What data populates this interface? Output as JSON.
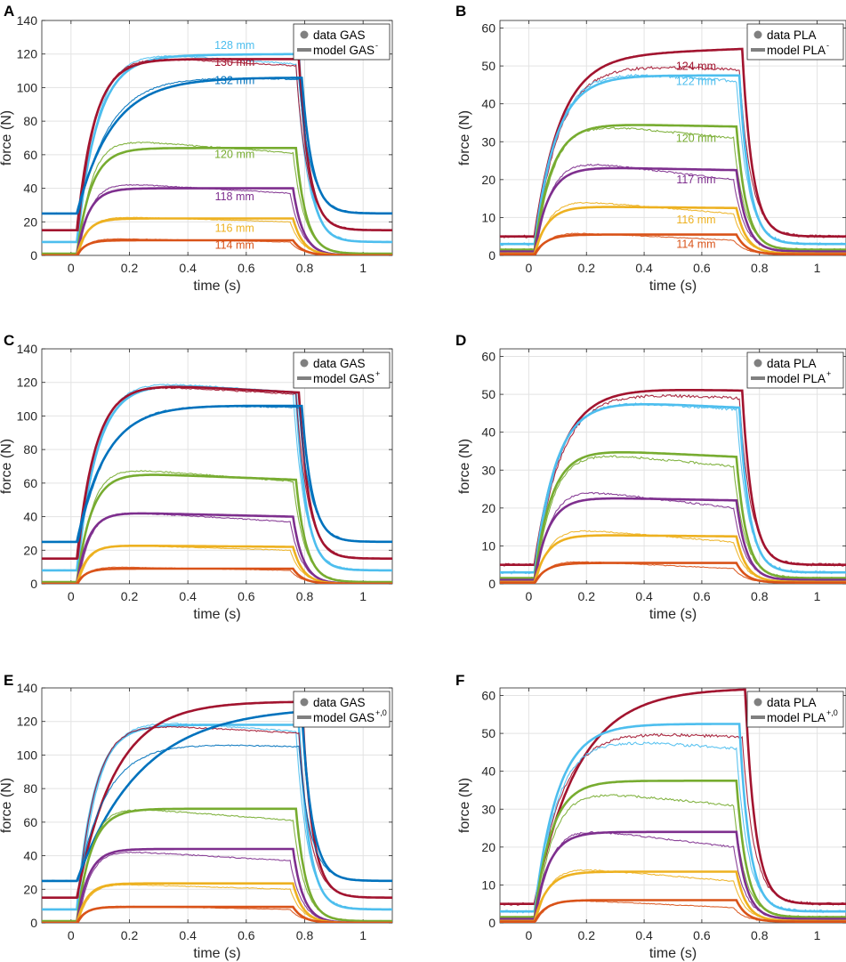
{
  "x_label": "time (s)",
  "y_label": "force (N)",
  "colors": {
    "128": "#4dbeee",
    "130": "#a2142f",
    "132": "#0072bd",
    "120": "#77ac30",
    "118": "#7e2f8e",
    "116": "#edb120",
    "114": "#d95319",
    "124": "#a2142f",
    "122": "#4dbeee",
    "117": "#7e2f8e"
  },
  "chart_data": [
    {
      "type": "line",
      "panel": "A",
      "muscle": "GAS",
      "legend": {
        "data": "data GAS",
        "model": "model GAS",
        "model_sup": "-"
      },
      "xlim": [
        -0.1,
        1.1
      ],
      "ylim": [
        0,
        140
      ],
      "xticks": [
        0,
        0.2,
        0.4,
        0.6,
        0.8,
        1
      ],
      "xtick_labels": [
        "0",
        "0.2",
        "0.4",
        "0.6",
        "0.8",
        "1"
      ],
      "yticks": [
        0,
        20,
        40,
        60,
        80,
        100,
        120,
        140
      ],
      "ytick_labels": [
        "0",
        "20",
        "40",
        "60",
        "80",
        "100",
        "120",
        "140"
      ],
      "xlabel": "time (s)",
      "ylabel": "force (N)",
      "series": [
        {
          "name": "128 mm",
          "length": "128",
          "baseline": 8,
          "model_plateau": 119,
          "model_tau": 0.07,
          "model_drift": 1,
          "model_end": 0.78,
          "data_peak": 122,
          "data_end": 114,
          "data_tau": 0.065,
          "show_label": true,
          "label_x": 0.56,
          "label_y": 123
        },
        {
          "name": "130 mm",
          "length": "130",
          "baseline": 15,
          "model_plateau": 117,
          "model_tau": 0.06,
          "model_drift": 0,
          "model_end": 0.78,
          "data_peak": 119,
          "data_end": 113,
          "data_tau": 0.06,
          "show_label": true,
          "label_x": 0.56,
          "label_y": 113
        },
        {
          "name": "132 mm",
          "length": "132",
          "baseline": 25,
          "model_plateau": 106,
          "model_tau": 0.12,
          "model_drift": 0,
          "model_end": 0.79,
          "data_peak": 108,
          "data_end": 105,
          "data_tau": 0.11,
          "show_label": true,
          "label_x": 0.56,
          "label_y": 102
        },
        {
          "name": "120 mm",
          "length": "120",
          "baseline": 1,
          "model_plateau": 64,
          "model_tau": 0.05,
          "model_drift": 0,
          "model_end": 0.77,
          "data_peak": 69,
          "data_end": 61,
          "data_tau": 0.045,
          "show_label": true,
          "label_x": 0.56,
          "label_y": 58
        },
        {
          "name": "118 mm",
          "length": "118",
          "baseline": 0,
          "model_plateau": 40,
          "model_tau": 0.04,
          "model_drift": 0,
          "model_end": 0.76,
          "data_peak": 43,
          "data_end": 37,
          "data_tau": 0.04,
          "show_label": true,
          "label_x": 0.56,
          "label_y": 33
        },
        {
          "name": "116 mm",
          "length": "116",
          "baseline": 0,
          "model_plateau": 22,
          "model_tau": 0.035,
          "model_drift": 0,
          "model_end": 0.76,
          "data_peak": 23,
          "data_end": 20,
          "data_tau": 0.035,
          "show_label": true,
          "label_x": 0.56,
          "label_y": 14
        },
        {
          "name": "114 mm",
          "length": "114",
          "baseline": 0,
          "model_plateau": 9,
          "model_tau": 0.03,
          "model_drift": 0,
          "model_end": 0.76,
          "data_peak": 10,
          "data_end": 8,
          "data_tau": 0.03,
          "show_label": true,
          "label_x": 0.56,
          "label_y": 4
        }
      ]
    },
    {
      "type": "line",
      "panel": "B",
      "muscle": "PLA",
      "legend": {
        "data": "data PLA",
        "model": "model PLA",
        "model_sup": "-"
      },
      "xlim": [
        -0.1,
        1.1
      ],
      "ylim": [
        0,
        62
      ],
      "xticks": [
        0,
        0.2,
        0.4,
        0.6,
        0.8,
        1
      ],
      "xtick_labels": [
        "0",
        "0.2",
        "0.4",
        "0.6",
        "0.8",
        "1"
      ],
      "yticks": [
        0,
        10,
        20,
        30,
        40,
        50,
        60
      ],
      "ytick_labels": [
        "0",
        "10",
        "20",
        "30",
        "40",
        "50",
        "60"
      ],
      "xlabel": "time (s)",
      "ylabel": "force (N)",
      "series": [
        {
          "name": "124 mm",
          "length": "124",
          "baseline": 5,
          "model_plateau": 52.5,
          "model_tau": 0.09,
          "model_drift": 2,
          "model_end": 0.74,
          "data_peak": 51,
          "data_end": 49,
          "data_tau": 0.09,
          "show_label": true,
          "label_x": 0.58,
          "label_y": 49
        },
        {
          "name": "122 mm",
          "length": "122",
          "baseline": 3,
          "model_plateau": 47.5,
          "model_tau": 0.075,
          "model_drift": 0,
          "model_end": 0.73,
          "data_peak": 49,
          "data_end": 46,
          "data_tau": 0.075,
          "show_label": true,
          "label_x": 0.58,
          "label_y": 45
        },
        {
          "name": "120 mm",
          "length": "120",
          "baseline": 1.5,
          "model_plateau": 35,
          "model_tau": 0.06,
          "model_drift": -1,
          "model_end": 0.72,
          "data_peak": 35,
          "data_end": 31,
          "data_tau": 0.06,
          "show_label": true,
          "label_x": 0.58,
          "label_y": 30
        },
        {
          "name": "117 mm",
          "length": "117",
          "baseline": 1,
          "model_plateau": 23.5,
          "model_tau": 0.05,
          "model_drift": -1,
          "model_end": 0.72,
          "data_peak": 25,
          "data_end": 20,
          "data_tau": 0.05,
          "show_label": true,
          "label_x": 0.58,
          "label_y": 19
        },
        {
          "name": "116 mm",
          "length": "116",
          "baseline": 0.5,
          "model_plateau": 13,
          "model_tau": 0.045,
          "model_drift": -0.5,
          "model_end": 0.72,
          "data_peak": 14.5,
          "data_end": 11,
          "data_tau": 0.045,
          "show_label": true,
          "label_x": 0.58,
          "label_y": 8.5
        },
        {
          "name": "114 mm",
          "length": "114",
          "baseline": 0.3,
          "model_plateau": 5.5,
          "model_tau": 0.04,
          "model_drift": 0,
          "model_end": 0.72,
          "data_peak": 6,
          "data_end": 4,
          "data_tau": 0.04,
          "show_label": true,
          "label_x": 0.58,
          "label_y": 2
        }
      ]
    },
    {
      "type": "line",
      "panel": "C",
      "muscle": "GAS",
      "legend": {
        "data": "data GAS",
        "model": "model GAS",
        "model_sup": "+"
      },
      "xlim": [
        -0.1,
        1.1
      ],
      "ylim": [
        0,
        140
      ],
      "xticks": [
        0,
        0.2,
        0.4,
        0.6,
        0.8,
        1
      ],
      "xtick_labels": [
        "0",
        "0.2",
        "0.4",
        "0.6",
        "0.8",
        "1"
      ],
      "yticks": [
        0,
        20,
        40,
        60,
        80,
        100,
        120,
        140
      ],
      "ytick_labels": [
        "0",
        "20",
        "40",
        "60",
        "80",
        "100",
        "120",
        "140"
      ],
      "xlabel": "time (s)",
      "ylabel": "force (N)",
      "series": [
        {
          "name": "128 mm",
          "length": "128",
          "baseline": 8,
          "model_plateau": 122,
          "model_tau": 0.07,
          "model_drift": -8,
          "model_end": 0.77,
          "data_peak": 122,
          "data_end": 114,
          "data_tau": 0.065,
          "show_label": false
        },
        {
          "name": "130 mm",
          "length": "130",
          "baseline": 15,
          "model_plateau": 121,
          "model_tau": 0.065,
          "model_drift": -7,
          "model_end": 0.78,
          "data_peak": 119,
          "data_end": 113,
          "data_tau": 0.06,
          "show_label": false
        },
        {
          "name": "132 mm",
          "length": "132",
          "baseline": 25,
          "model_plateau": 107,
          "model_tau": 0.1,
          "model_drift": -1,
          "model_end": 0.79,
          "data_peak": 108,
          "data_end": 105,
          "data_tau": 0.1,
          "show_label": false
        },
        {
          "name": "120 mm",
          "length": "120",
          "baseline": 1,
          "model_plateau": 67,
          "model_tau": 0.05,
          "model_drift": -5,
          "model_end": 0.77,
          "data_peak": 69,
          "data_end": 61,
          "data_tau": 0.045,
          "show_label": false
        },
        {
          "name": "118 mm",
          "length": "118",
          "baseline": 0,
          "model_plateau": 43,
          "model_tau": 0.04,
          "model_drift": -3,
          "model_end": 0.76,
          "data_peak": 43,
          "data_end": 37,
          "data_tau": 0.04,
          "show_label": false
        },
        {
          "name": "116 mm",
          "length": "116",
          "baseline": 0,
          "model_plateau": 23,
          "model_tau": 0.035,
          "model_drift": -1,
          "model_end": 0.76,
          "data_peak": 23,
          "data_end": 20,
          "data_tau": 0.035,
          "show_label": false
        },
        {
          "name": "114 mm",
          "length": "114",
          "baseline": 0,
          "model_plateau": 9,
          "model_tau": 0.03,
          "model_drift": 0,
          "model_end": 0.76,
          "data_peak": 10,
          "data_end": 8,
          "data_tau": 0.03,
          "show_label": false
        }
      ]
    },
    {
      "type": "line",
      "panel": "D",
      "muscle": "PLA",
      "legend": {
        "data": "data PLA",
        "model": "model PLA",
        "model_sup": "+"
      },
      "xlim": [
        -0.1,
        1.1
      ],
      "ylim": [
        0,
        62
      ],
      "xticks": [
        0,
        0.2,
        0.4,
        0.6,
        0.8,
        1
      ],
      "xtick_labels": [
        "0",
        "0.2",
        "0.4",
        "0.6",
        "0.8",
        "1"
      ],
      "yticks": [
        0,
        10,
        20,
        30,
        40,
        50,
        60
      ],
      "ytick_labels": [
        "0",
        "10",
        "20",
        "30",
        "40",
        "50",
        "60"
      ],
      "xlabel": "time (s)",
      "ylabel": "force (N)",
      "series": [
        {
          "name": "124 mm",
          "length": "124",
          "baseline": 5,
          "model_plateau": 52,
          "model_tau": 0.09,
          "model_drift": -1,
          "model_end": 0.74,
          "data_peak": 51,
          "data_end": 49,
          "data_tau": 0.09,
          "show_label": false
        },
        {
          "name": "122 mm",
          "length": "122",
          "baseline": 3,
          "model_plateau": 49,
          "model_tau": 0.075,
          "model_drift": -2.5,
          "model_end": 0.73,
          "data_peak": 49,
          "data_end": 46,
          "data_tau": 0.075,
          "show_label": false
        },
        {
          "name": "120 mm",
          "length": "120",
          "baseline": 1.5,
          "model_plateau": 36,
          "model_tau": 0.06,
          "model_drift": -2.5,
          "model_end": 0.72,
          "data_peak": 35,
          "data_end": 31,
          "data_tau": 0.06,
          "show_label": false
        },
        {
          "name": "117 mm",
          "length": "117",
          "baseline": 1,
          "model_plateau": 23,
          "model_tau": 0.05,
          "model_drift": -1,
          "model_end": 0.72,
          "data_peak": 25,
          "data_end": 20,
          "data_tau": 0.05,
          "show_label": false
        },
        {
          "name": "116 mm",
          "length": "116",
          "baseline": 0.5,
          "model_plateau": 13,
          "model_tau": 0.045,
          "model_drift": -0.5,
          "model_end": 0.72,
          "data_peak": 14.5,
          "data_end": 11,
          "data_tau": 0.045,
          "show_label": false
        },
        {
          "name": "114 mm",
          "length": "114",
          "baseline": 0.3,
          "model_plateau": 5.5,
          "model_tau": 0.04,
          "model_drift": 0,
          "model_end": 0.72,
          "data_peak": 6,
          "data_end": 4,
          "data_tau": 0.04,
          "show_label": false
        }
      ]
    },
    {
      "type": "line",
      "panel": "E",
      "muscle": "GAS",
      "legend": {
        "data": "data GAS",
        "model": "model GAS",
        "model_sup": "+,0"
      },
      "xlim": [
        -0.1,
        1.1
      ],
      "ylim": [
        0,
        140
      ],
      "xticks": [
        0,
        0.2,
        0.4,
        0.6,
        0.8,
        1
      ],
      "xtick_labels": [
        "0",
        "0.2",
        "0.4",
        "0.6",
        "0.8",
        "1"
      ],
      "yticks": [
        0,
        20,
        40,
        60,
        80,
        100,
        120,
        140
      ],
      "ytick_labels": [
        "0",
        "20",
        "40",
        "60",
        "80",
        "100",
        "120",
        "140"
      ],
      "xlabel": "time (s)",
      "ylabel": "force (N)",
      "series": [
        {
          "name": "128 mm",
          "length": "128",
          "baseline": 8,
          "model_plateau": 118,
          "model_tau": 0.06,
          "model_drift": 0,
          "model_end": 0.78,
          "data_peak": 122,
          "data_end": 114,
          "data_tau": 0.065,
          "show_label": false
        },
        {
          "name": "130 mm",
          "length": "130",
          "baseline": 15,
          "model_plateau": 132,
          "model_tau": 0.13,
          "model_drift": 0,
          "model_end": 0.79,
          "data_peak": 119,
          "data_end": 113,
          "data_tau": 0.06,
          "show_label": false
        },
        {
          "name": "132 mm",
          "length": "132",
          "baseline": 25,
          "model_plateau": 129,
          "model_tau": 0.22,
          "model_drift": 0,
          "model_end": 0.79,
          "data_peak": 108,
          "data_end": 105,
          "data_tau": 0.1,
          "show_label": false
        },
        {
          "name": "120 mm",
          "length": "120",
          "baseline": 1,
          "model_plateau": 68,
          "model_tau": 0.05,
          "model_drift": 0,
          "model_end": 0.77,
          "data_peak": 69,
          "data_end": 61,
          "data_tau": 0.045,
          "show_label": false
        },
        {
          "name": "118 mm",
          "length": "118",
          "baseline": 0,
          "model_plateau": 44,
          "model_tau": 0.04,
          "model_drift": 0,
          "model_end": 0.76,
          "data_peak": 43,
          "data_end": 37,
          "data_tau": 0.04,
          "show_label": false
        },
        {
          "name": "116 mm",
          "length": "116",
          "baseline": 0,
          "model_plateau": 23.5,
          "model_tau": 0.035,
          "model_drift": 0,
          "model_end": 0.76,
          "data_peak": 23,
          "data_end": 20,
          "data_tau": 0.035,
          "show_label": false
        },
        {
          "name": "114 mm",
          "length": "114",
          "baseline": 0,
          "model_plateau": 9.5,
          "model_tau": 0.03,
          "model_drift": 0,
          "model_end": 0.76,
          "data_peak": 10,
          "data_end": 8,
          "data_tau": 0.03,
          "show_label": false
        }
      ]
    },
    {
      "type": "line",
      "panel": "F",
      "muscle": "PLA",
      "legend": {
        "data": "data PLA",
        "model": "model PLA",
        "model_sup": "+,0"
      },
      "xlim": [
        -0.1,
        1.1
      ],
      "ylim": [
        0,
        62
      ],
      "xticks": [
        0,
        0.2,
        0.4,
        0.6,
        0.8,
        1
      ],
      "xtick_labels": [
        "0",
        "0.2",
        "0.4",
        "0.6",
        "0.8",
        "1"
      ],
      "yticks": [
        0,
        10,
        20,
        30,
        40,
        50,
        60
      ],
      "ytick_labels": [
        "0",
        "10",
        "20",
        "30",
        "40",
        "50",
        "60"
      ],
      "xlabel": "time (s)",
      "ylabel": "force (N)",
      "series": [
        {
          "name": "124 mm",
          "length": "124",
          "baseline": 5,
          "model_plateau": 62,
          "model_tau": 0.15,
          "model_drift": 0,
          "model_end": 0.75,
          "data_peak": 51,
          "data_end": 49,
          "data_tau": 0.09,
          "show_label": false
        },
        {
          "name": "122 mm",
          "length": "122",
          "baseline": 3,
          "model_plateau": 52.5,
          "model_tau": 0.08,
          "model_drift": 0,
          "model_end": 0.73,
          "data_peak": 49,
          "data_end": 46,
          "data_tau": 0.075,
          "show_label": false
        },
        {
          "name": "120 mm",
          "length": "120",
          "baseline": 1.5,
          "model_plateau": 37.5,
          "model_tau": 0.06,
          "model_drift": 0,
          "model_end": 0.72,
          "data_peak": 35,
          "data_end": 31,
          "data_tau": 0.06,
          "show_label": false
        },
        {
          "name": "117 mm",
          "length": "117",
          "baseline": 1,
          "model_plateau": 24,
          "model_tau": 0.05,
          "model_drift": 0,
          "model_end": 0.72,
          "data_peak": 25,
          "data_end": 20,
          "data_tau": 0.05,
          "show_label": false
        },
        {
          "name": "116 mm",
          "length": "116",
          "baseline": 0.5,
          "model_plateau": 13.5,
          "model_tau": 0.045,
          "model_drift": 0,
          "model_end": 0.72,
          "data_peak": 14.5,
          "data_end": 11,
          "data_tau": 0.045,
          "show_label": false
        },
        {
          "name": "114 mm",
          "length": "114",
          "baseline": 0.3,
          "model_plateau": 6,
          "model_tau": 0.04,
          "model_drift": 0,
          "model_end": 0.72,
          "data_peak": 6,
          "data_end": 4,
          "data_tau": 0.04,
          "show_label": false
        }
      ]
    }
  ]
}
